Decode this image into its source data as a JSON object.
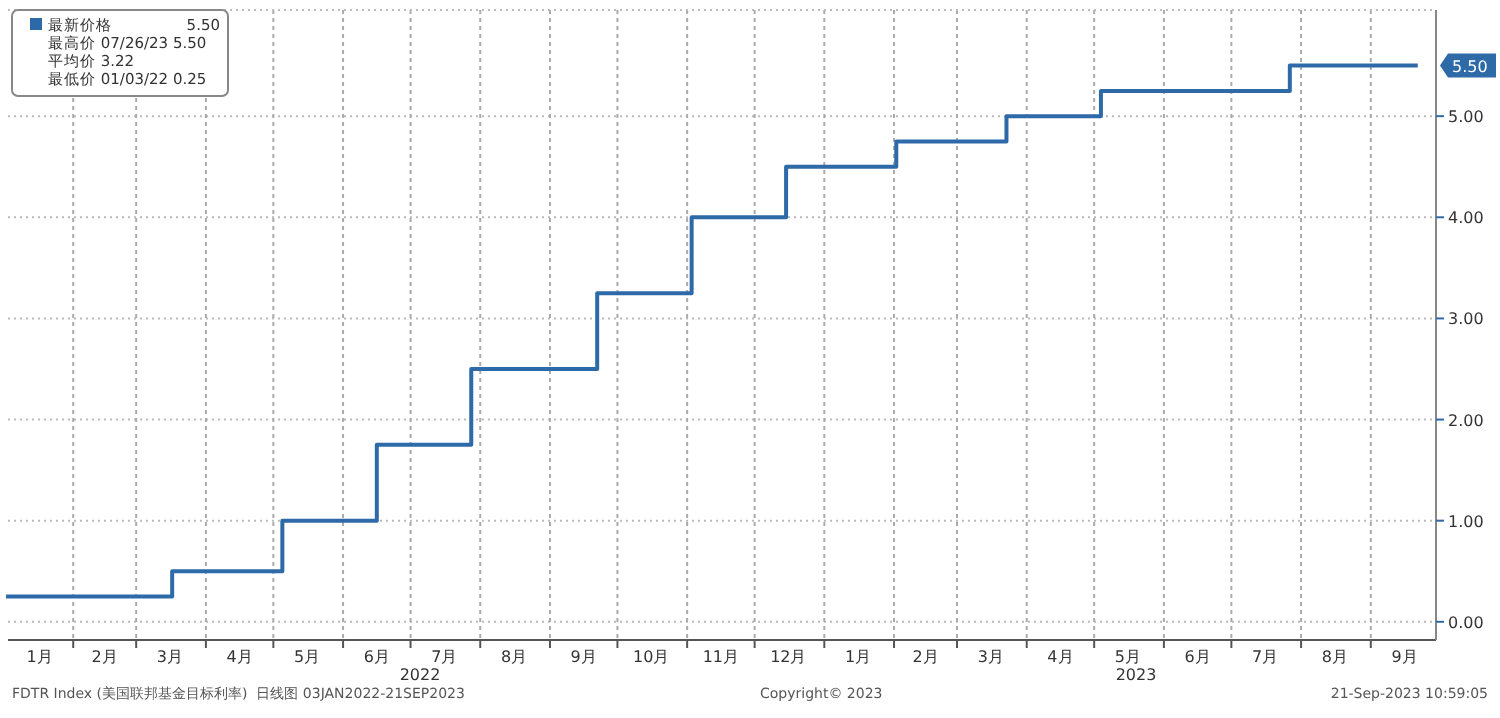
{
  "chart_data": {
    "type": "step",
    "legend": "top left",
    "grid": true,
    "line_style": "solid",
    "marker": "none",
    "xlim": [
      "2022-01-03",
      "2023-09-30"
    ],
    "ylim": [
      -0.18,
      6.05
    ],
    "yticks": [
      {
        "value": 0,
        "label": "0.00"
      },
      {
        "value": 1,
        "label": "1.00"
      },
      {
        "value": 2,
        "label": "2.00"
      },
      {
        "value": 3,
        "label": "3.00"
      },
      {
        "value": 4,
        "label": "4.00"
      },
      {
        "value": 5,
        "label": "5.00"
      }
    ],
    "xticks": [
      {
        "value": "2022-01-17",
        "label": "1月"
      },
      {
        "value": "2022-02-01",
        "label": null
      },
      {
        "value": "2022-02-15",
        "label": "2月"
      },
      {
        "value": "2022-03-01",
        "label": null
      },
      {
        "value": "2022-03-16",
        "label": "3月"
      },
      {
        "value": "2022-04-01",
        "label": null
      },
      {
        "value": "2022-04-16",
        "label": "4月"
      },
      {
        "value": "2022-05-01",
        "label": null
      },
      {
        "value": "2022-05-16",
        "label": "5月"
      },
      {
        "value": "2022-06-01",
        "label": null
      },
      {
        "value": "2022-06-16",
        "label": "6月"
      },
      {
        "value": "2022-07-01",
        "label": null
      },
      {
        "value": "2022-07-16",
        "label": "7月"
      },
      {
        "value": "2022-08-01",
        "label": null
      },
      {
        "value": "2022-08-16",
        "label": "8月"
      },
      {
        "value": "2022-09-01",
        "label": null
      },
      {
        "value": "2022-09-16",
        "label": "9月"
      },
      {
        "value": "2022-10-01",
        "label": null
      },
      {
        "value": "2022-10-16",
        "label": "10月"
      },
      {
        "value": "2022-11-01",
        "label": null
      },
      {
        "value": "2022-11-16",
        "label": "11月"
      },
      {
        "value": "2022-12-01",
        "label": null
      },
      {
        "value": "2022-12-16",
        "label": "12月"
      },
      {
        "value": "2023-01-01",
        "label": null
      },
      {
        "value": "2023-01-16",
        "label": "1月"
      },
      {
        "value": "2023-02-01",
        "label": null
      },
      {
        "value": "2023-02-15",
        "label": "2月"
      },
      {
        "value": "2023-03-01",
        "label": null
      },
      {
        "value": "2023-03-16",
        "label": "3月"
      },
      {
        "value": "2023-04-01",
        "label": null
      },
      {
        "value": "2023-04-16",
        "label": "4月"
      },
      {
        "value": "2023-05-01",
        "label": null
      },
      {
        "value": "2023-05-16",
        "label": "5月"
      },
      {
        "value": "2023-06-01",
        "label": null
      },
      {
        "value": "2023-06-16",
        "label": "6月"
      },
      {
        "value": "2023-07-01",
        "label": null
      },
      {
        "value": "2023-07-16",
        "label": "7月"
      },
      {
        "value": "2023-08-01",
        "label": null
      },
      {
        "value": "2023-08-16",
        "label": "8月"
      },
      {
        "value": "2023-09-01",
        "label": null
      },
      {
        "value": "2023-09-16",
        "label": "9月"
      }
    ],
    "series": [
      {
        "name": "最新价格",
        "color": "#2e6aa8",
        "x": [
          "2022-01-03",
          "2022-03-17",
          "2022-05-05",
          "2022-06-16",
          "2022-07-28",
          "2022-09-22",
          "2022-11-03",
          "2022-12-15",
          "2023-02-02",
          "2023-03-23",
          "2023-05-04",
          "2023-07-27",
          "2023-09-21"
        ],
        "values": [
          0.25,
          0.5,
          1.0,
          1.75,
          2.5,
          3.25,
          4.0,
          4.5,
          4.75,
          5.0,
          5.25,
          5.5,
          5.5
        ]
      }
    ],
    "annotations": [
      "5.50",
      "最高价 07/26/23 5.50",
      "平均价 3.22",
      "最低价 01/03/22 0.25",
      "FDTR Index (美国联邦基金目标利率)  日线图 03JAN2022-21SEP2023",
      "Copyright© 2023",
      "21-Sep-2023 10:59:05",
      {
        "text": "5.50",
        "x": "2023-09-21",
        "y": 5.5
      },
      "2022",
      "2023"
    ]
  }
}
